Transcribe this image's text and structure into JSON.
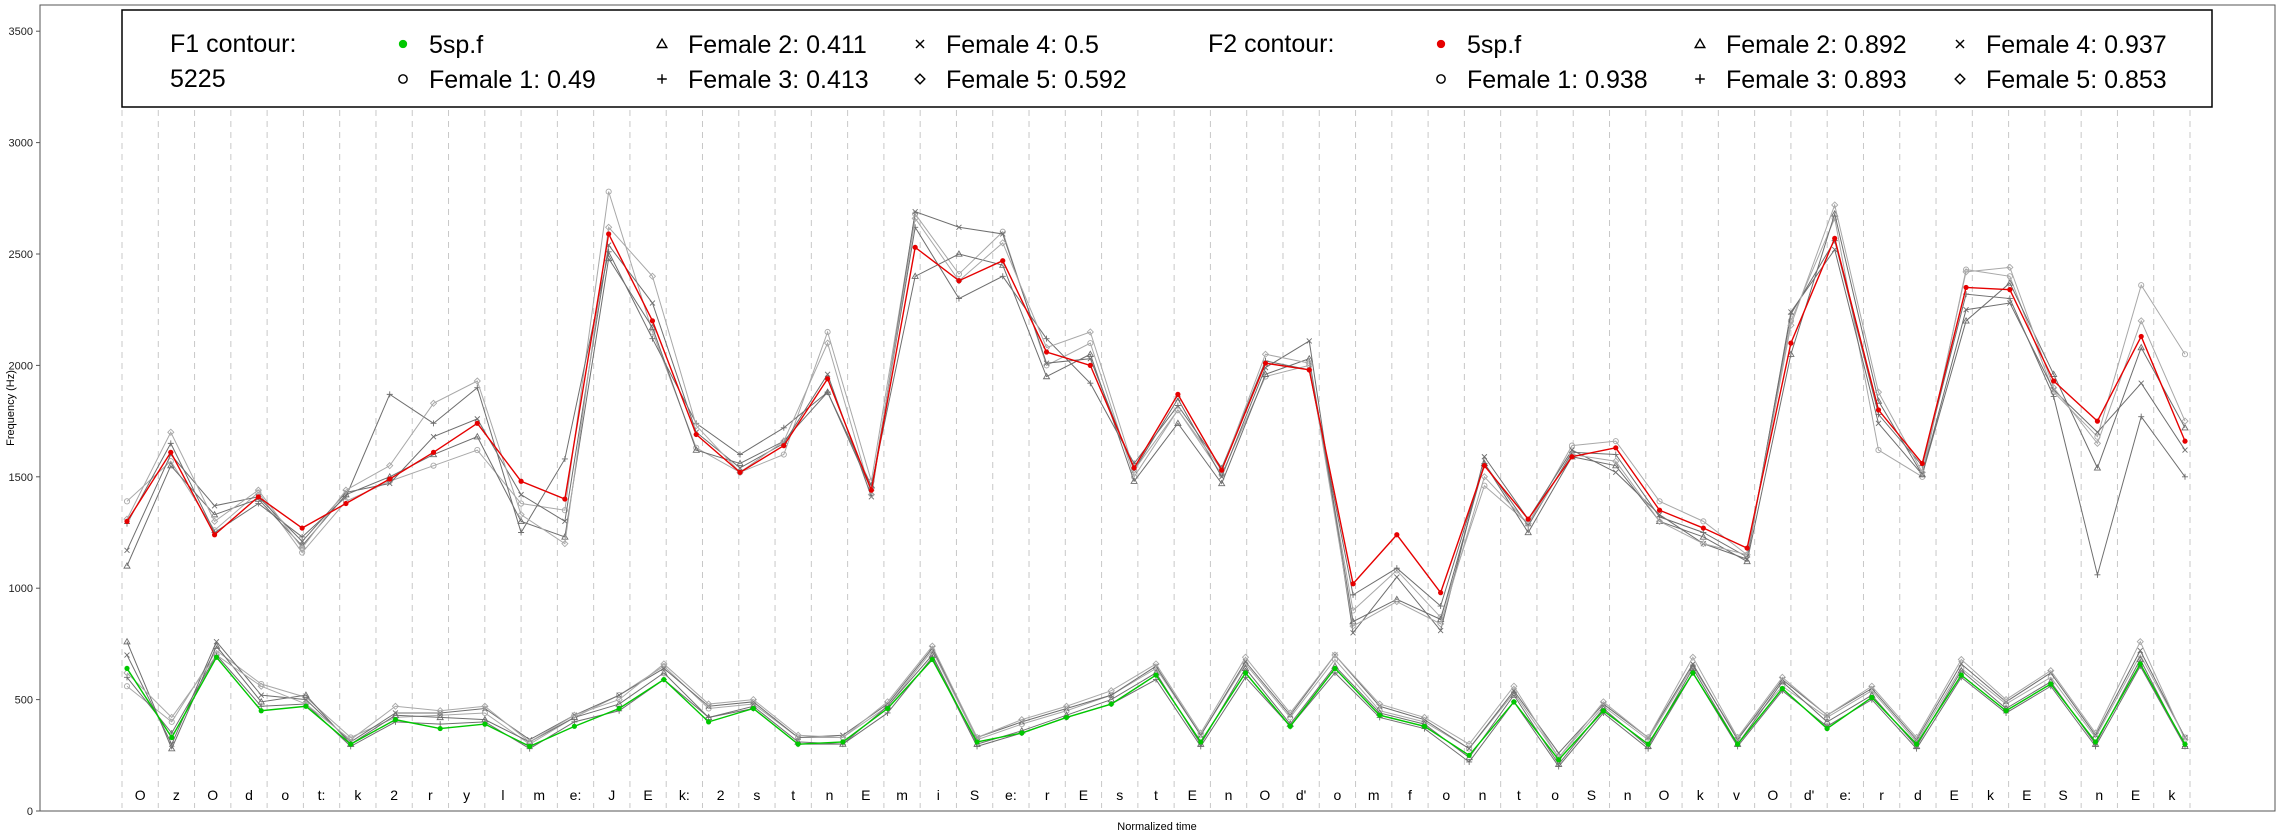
{
  "chart_data": {
    "type": "line",
    "xlabel": "Normalized time",
    "ylabel": "Frequency (Hz)",
    "ylim": [
      0,
      3600
    ],
    "y_ticks": [
      0,
      500,
      1000,
      1500,
      2000,
      2500,
      3000,
      3500
    ],
    "grid": "vertical dashed segment boundaries",
    "legend_position": "top",
    "colors": {
      "f1": "#00c800",
      "f2": "#e60000",
      "reference": "#6e6e6e",
      "reference_light": "#a8a8a8"
    },
    "segments": [
      "O",
      "z",
      "O",
      "d",
      "o",
      "t:",
      "k",
      "2",
      "r",
      "y",
      "l",
      "m",
      "e:",
      "J",
      "E",
      "k:",
      "2",
      "s",
      "t",
      "n",
      "E",
      "m",
      "i",
      "S",
      "e:",
      "r",
      "E",
      "s",
      "t",
      "E",
      "n",
      "O",
      "d'",
      "o",
      "m",
      "f",
      "o",
      "n",
      "t",
      "o",
      "S",
      "n",
      "O",
      "k",
      "v",
      "O",
      "d'",
      "e:",
      "r",
      "d",
      "E",
      "k",
      "E",
      "S",
      "n",
      "E",
      "k"
    ],
    "legend": {
      "f1_title": "F1 contour:",
      "f1_id": "5225",
      "f2_title": "F2 contour:",
      "f1_entries": [
        {
          "label": "5sp.f",
          "marker": "dot"
        },
        {
          "label": "Female 1: 0.49",
          "marker": "circle"
        },
        {
          "label": "Female 2: 0.411",
          "marker": "triangle"
        },
        {
          "label": "Female 3: 0.413",
          "marker": "plus"
        },
        {
          "label": "Female 4: 0.5",
          "marker": "cross"
        },
        {
          "label": "Female 5: 0.592",
          "marker": "diamond"
        }
      ],
      "f2_entries": [
        {
          "label": "5sp.f",
          "marker": "dot"
        },
        {
          "label": "Female 1: 0.938",
          "marker": "circle"
        },
        {
          "label": "Female 2: 0.892",
          "marker": "triangle"
        },
        {
          "label": "Female 3: 0.893",
          "marker": "plus"
        },
        {
          "label": "Female 4: 0.937",
          "marker": "cross"
        },
        {
          "label": "Female 5: 0.853",
          "marker": "diamond"
        }
      ]
    },
    "series": [
      {
        "name": "5sp.f",
        "formant": "F2",
        "marker": "dot",
        "values": [
          1300,
          1610,
          1240,
          1410,
          1270,
          1380,
          1490,
          1610,
          1740,
          1480,
          1400,
          2590,
          2200,
          1690,
          1520,
          1640,
          1940,
          1440,
          2530,
          2380,
          2470,
          2060,
          2000,
          1540,
          1870,
          1530,
          2010,
          1980,
          1020,
          1240,
          980,
          1550,
          1310,
          1590,
          1630,
          1350,
          1270,
          1180,
          2100,
          2570,
          1800,
          1560,
          2350,
          2340,
          1930,
          1750,
          2130,
          1660
        ]
      },
      {
        "name": "5sp.f",
        "formant": "F1",
        "marker": "dot",
        "values": [
          640,
          330,
          690,
          450,
          470,
          300,
          410,
          370,
          390,
          290,
          380,
          460,
          590,
          400,
          460,
          300,
          310,
          460,
          680,
          310,
          350,
          420,
          480,
          610,
          310,
          620,
          380,
          640,
          430,
          380,
          250,
          490,
          230,
          450,
          300,
          620,
          300,
          550,
          370,
          510,
          300,
          610,
          450,
          570,
          310,
          660,
          300
        ]
      },
      {
        "name": "Female 1",
        "formant": "F2",
        "marker": "circle",
        "values": [
          1390,
          1570,
          1260,
          1430,
          1160,
          1390,
          1480,
          1550,
          1620,
          1380,
          1350,
          2780,
          2150,
          1630,
          1520,
          1600,
          2150,
          1480,
          2680,
          2410,
          2600,
          2000,
          2100,
          1500,
          1800,
          1510,
          1950,
          2000,
          900,
          1080,
          870,
          1460,
          1290,
          1640,
          1660,
          1390,
          1300,
          1150,
          2200,
          2660,
          1620,
          1500,
          2430,
          2400,
          1880,
          1680,
          2360,
          2050
        ]
      },
      {
        "name": "Female 2",
        "formant": "F2",
        "marker": "triangle",
        "values": [
          1100,
          1550,
          1330,
          1400,
          1190,
          1420,
          1500,
          1600,
          1680,
          1300,
          1230,
          2480,
          2170,
          1620,
          1560,
          1660,
          1880,
          1460,
          2400,
          2500,
          2450,
          1950,
          2050,
          1480,
          1740,
          1470,
          1960,
          2030,
          850,
          950,
          860,
          1560,
          1250,
          1590,
          1550,
          1300,
          1230,
          1120,
          2050,
          2680,
          1840,
          1510,
          2200,
          2370,
          1960,
          1540,
          2080,
          1720
        ]
      },
      {
        "name": "Female 3",
        "formant": "F2",
        "marker": "plus",
        "values": [
          1290,
          1650,
          1250,
          1380,
          1230,
          1410,
          1870,
          1740,
          1900,
          1250,
          1580,
          2510,
          2120,
          1740,
          1600,
          1720,
          1880,
          1440,
          2620,
          2300,
          2400,
          2120,
          1920,
          1560,
          1820,
          1540,
          2020,
          1980,
          970,
          1090,
          920,
          1560,
          1280,
          1610,
          1600,
          1320,
          1250,
          1140,
          2230,
          2560,
          1780,
          1550,
          2320,
          2300,
          1860,
          1060,
          1770,
          1500
        ]
      },
      {
        "name": "Female 4",
        "formant": "F2",
        "marker": "cross",
        "values": [
          1170,
          1600,
          1370,
          1410,
          1210,
          1430,
          1470,
          1680,
          1760,
          1420,
          1300,
          2540,
          2280,
          1700,
          1540,
          1650,
          1960,
          1410,
          2690,
          2620,
          2590,
          2010,
          2030,
          1530,
          1850,
          1500,
          1990,
          2110,
          800,
          1050,
          810,
          1590,
          1310,
          1620,
          1520,
          1330,
          1200,
          1130,
          2240,
          2520,
          1740,
          1510,
          2250,
          2280,
          1890,
          1700,
          1920,
          1620
        ]
      },
      {
        "name": "Female 5",
        "formant": "F2",
        "marker": "diamond",
        "values": [
          1310,
          1700,
          1300,
          1440,
          1180,
          1440,
          1550,
          1830,
          1930,
          1330,
          1200,
          2620,
          2400,
          1730,
          1520,
          1660,
          2100,
          1420,
          2660,
          2380,
          2550,
          2080,
          2150,
          1530,
          1800,
          1530,
          2050,
          2010,
          830,
          940,
          840,
          1500,
          1290,
          1600,
          1570,
          1300,
          1200,
          1150,
          2180,
          2720,
          1880,
          1520,
          2420,
          2440,
          1900,
          1650,
          2200,
          1750
        ]
      },
      {
        "name": "Female 1",
        "formant": "F1",
        "marker": "circle",
        "values": [
          560,
          400,
          720,
          570,
          510,
          330,
          420,
          430,
          440,
          300,
          420,
          520,
          650,
          460,
          480,
          330,
          330,
          470,
          720,
          320,
          390,
          450,
          520,
          640,
          340,
          660,
          420,
          680,
          450,
          400,
          280,
          530,
          240,
          470,
          320,
          650,
          330,
          560,
          420,
          540,
          310,
          640,
          480,
          600,
          330,
          700,
          330
        ]
      },
      {
        "name": "Female 2",
        "formant": "F1",
        "marker": "triangle",
        "values": [
          760,
          280,
          740,
          490,
          520,
          300,
          430,
          420,
          410,
          310,
          420,
          480,
          620,
          420,
          470,
          310,
          300,
          470,
          700,
          300,
          360,
          430,
          500,
          620,
          300,
          640,
          390,
          650,
          440,
          390,
          240,
          520,
          210,
          460,
          290,
          640,
          300,
          580,
          400,
          520,
          290,
          630,
          460,
          580,
          300,
          680,
          290
        ]
      },
      {
        "name": "Female 3",
        "formant": "F1",
        "marker": "plus",
        "values": [
          600,
          350,
          700,
          470,
          480,
          290,
          400,
          390,
          400,
          280,
          400,
          450,
          590,
          420,
          460,
          300,
          300,
          440,
          690,
          290,
          350,
          420,
          480,
          590,
          290,
          600,
          380,
          620,
          420,
          370,
          220,
          490,
          200,
          440,
          280,
          620,
          290,
          540,
          380,
          500,
          280,
          600,
          440,
          560,
          290,
          650,
          290
        ]
      },
      {
        "name": "Female 4",
        "formant": "F1",
        "marker": "cross",
        "values": [
          700,
          300,
          760,
          520,
          500,
          310,
          440,
          440,
          460,
          320,
          430,
          520,
          640,
          470,
          490,
          330,
          340,
          480,
          730,
          330,
          400,
          460,
          520,
          650,
          340,
          670,
          430,
          700,
          470,
          410,
          280,
          540,
          260,
          480,
          330,
          660,
          320,
          590,
          430,
          550,
          320,
          660,
          490,
          620,
          340,
          720,
          330
        ]
      },
      {
        "name": "Female 5",
        "formant": "F1",
        "marker": "diamond",
        "values": [
          620,
          420,
          700,
          560,
          480,
          320,
          470,
          450,
          470,
          310,
          430,
          500,
          660,
          480,
          500,
          340,
          330,
          490,
          740,
          330,
          410,
          470,
          540,
          660,
          350,
          690,
          440,
          700,
          480,
          420,
          300,
          560,
          240,
          490,
          330,
          690,
          330,
          600,
          430,
          560,
          330,
          680,
          500,
          630,
          350,
          760,
          320
        ]
      }
    ]
  }
}
